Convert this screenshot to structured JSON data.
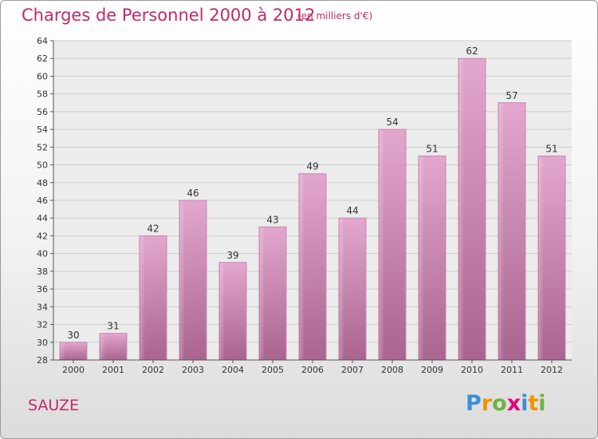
{
  "title": "Charges de Personnel 2000 à 2012",
  "subtitle": "(en milliers d'€)",
  "place": "SAUZE",
  "logo": {
    "text": "Proxiti",
    "letters": [
      "P",
      "r",
      "o",
      "x",
      "i",
      "t",
      "i"
    ],
    "colors": [
      "#3d8fd6",
      "#f39200",
      "#6db33f",
      "#e6007e",
      "#3d8fd6",
      "#f39200",
      "#6db33f"
    ]
  },
  "colors": {
    "bar": "#d58cba",
    "bar_dark": "#b06596",
    "accent": "#c02a6a"
  },
  "chart_data": {
    "type": "bar",
    "categories": [
      "2000",
      "2001",
      "2002",
      "2003",
      "2004",
      "2005",
      "2006",
      "2007",
      "2008",
      "2009",
      "2010",
      "2011",
      "2012"
    ],
    "values": [
      30,
      31,
      42,
      46,
      39,
      43,
      49,
      44,
      54,
      51,
      62,
      57,
      51
    ],
    "ylim": [
      28,
      64
    ],
    "yticks": [
      28,
      30,
      32,
      34,
      36,
      38,
      40,
      42,
      44,
      46,
      48,
      50,
      52,
      54,
      56,
      58,
      60,
      62,
      64
    ],
    "grid": true,
    "xlabel": "",
    "ylabel": ""
  }
}
